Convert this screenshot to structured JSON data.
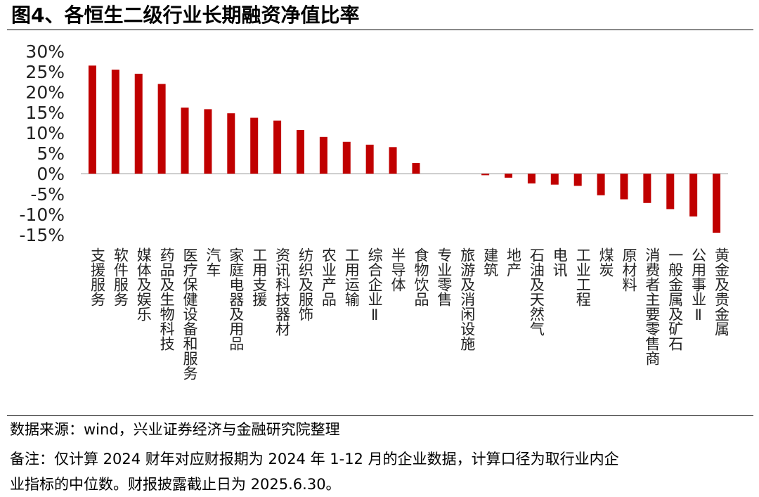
{
  "title": "图4、各恒生二级行业长期融资净值比率",
  "footer": {
    "source": "数据来源：wind，兴业证券经济与金融研究院整理",
    "note_line1": "备注：仅计算 2024 财年对应财报期为 2024 年 1-12 月的企业数据，计算口径为取行业内企",
    "note_line2": "业指标的中位数。财报披露截止日为 2025.6.30。"
  },
  "colors": {
    "bar": "#c00000",
    "axis": "#bfbfbf",
    "text": "#000000"
  },
  "chart_data": {
    "type": "bar",
    "categories": [
      "支援服务",
      "软件服务",
      "媒体及娱乐",
      "药品及生物科技",
      "医疗保健设备和服务",
      "汽车",
      "家庭电器及用品",
      "工用支援",
      "资讯科技器材",
      "纺织及服饰",
      "农业产品",
      "工用运输",
      "综合企业Ⅱ",
      "半导体",
      "食物饮品",
      "专业零售",
      "旅游及消闲设施",
      "建筑",
      "地产",
      "石油及天然气",
      "电讯",
      "工业工程",
      "煤炭",
      "原材料",
      "消费者主要零售商",
      "一般金属及矿石",
      "公用事业Ⅱ",
      "黄金及贵金属"
    ],
    "values": [
      0.265,
      0.255,
      0.245,
      0.22,
      0.162,
      0.158,
      0.148,
      0.137,
      0.13,
      0.107,
      0.09,
      0.078,
      0.071,
      0.065,
      0.026,
      0,
      0,
      -0.004,
      -0.01,
      -0.024,
      -0.027,
      -0.03,
      -0.053,
      -0.063,
      -0.072,
      -0.087,
      -0.105,
      -0.145
    ],
    "ylim": [
      -0.15,
      0.3
    ],
    "yticks": [
      0.3,
      0.25,
      0.2,
      0.15,
      0.1,
      0.05,
      0,
      -0.05,
      -0.1,
      -0.15
    ],
    "ytick_labels": [
      "30%",
      "25%",
      "20%",
      "15%",
      "10%",
      "5%",
      "0%",
      "-5%",
      "-10%",
      "-15%"
    ],
    "xlabel": "",
    "ylabel": "",
    "grid": false,
    "legend": "none"
  }
}
